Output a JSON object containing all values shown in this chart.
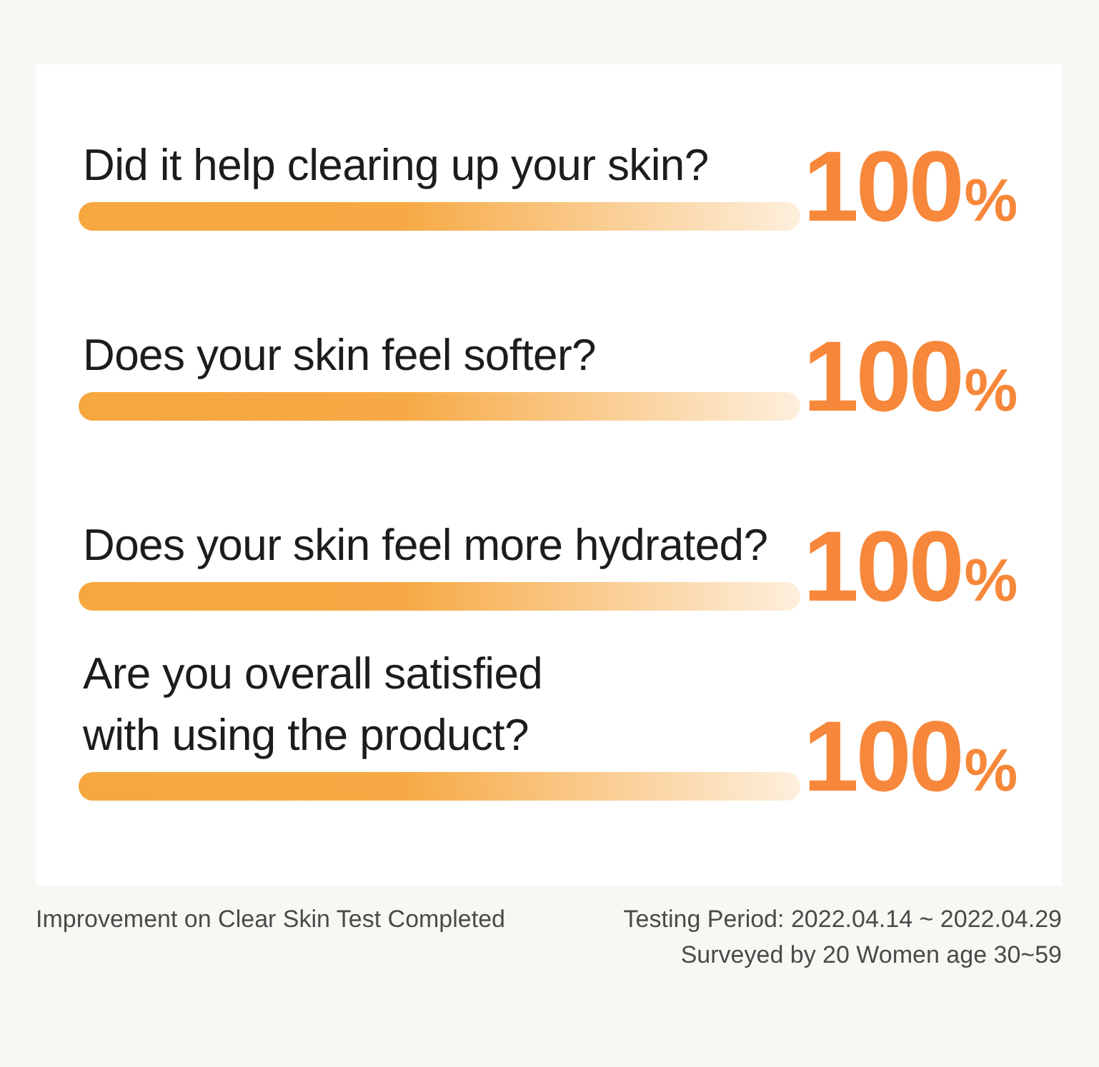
{
  "chart_data": {
    "type": "bar",
    "orientation": "horizontal",
    "categories": [
      "Did it help clearing up your skin?",
      "Does your skin feel softer?",
      "Does your skin feel more hydrated?",
      "Are you overall satisfied with using the product?"
    ],
    "values": [
      100,
      100,
      100,
      100
    ],
    "color": "#f6a73f",
    "value_labels": [
      "100%",
      "100%",
      "100%",
      "100%"
    ],
    "tick_labels": "y",
    "annotations": [
      "Improvement on Clear Skin Test Completed",
      "Testing Period: 2022.04.14 ~ 2022.04.29",
      "Surveyed by 20 Women age 30~59"
    ]
  }
}
